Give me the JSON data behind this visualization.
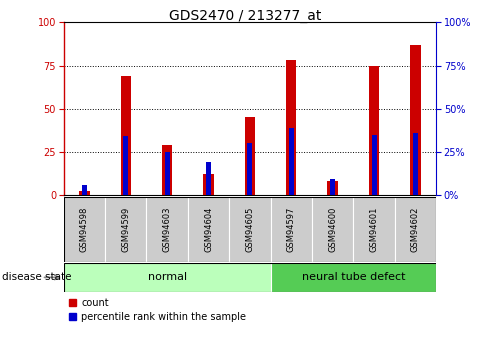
{
  "title": "GDS2470 / 213277_at",
  "samples": [
    "GSM94598",
    "GSM94599",
    "GSM94603",
    "GSM94604",
    "GSM94605",
    "GSM94597",
    "GSM94600",
    "GSM94601",
    "GSM94602"
  ],
  "count_values": [
    2,
    69,
    29,
    12,
    45,
    78,
    8,
    75,
    87
  ],
  "percentile_values": [
    6,
    34,
    25,
    19,
    30,
    39,
    9,
    35,
    36
  ],
  "groups": [
    {
      "label": "normal",
      "start": 0,
      "end": 5,
      "color": "#bbffbb"
    },
    {
      "label": "neural tube defect",
      "start": 5,
      "end": 9,
      "color": "#55cc55"
    }
  ],
  "ylim": [
    0,
    100
  ],
  "yticks": [
    0,
    25,
    50,
    75,
    100
  ],
  "bar_color": "#cc0000",
  "percentile_color": "#0000cc",
  "left_axis_color": "#cc0000",
  "right_axis_color": "#0000cc",
  "grid_color": "black",
  "bar_width": 0.25,
  "percentile_bar_width": 0.12,
  "plot_bg_color": "#ffffff",
  "sample_box_color": "#cccccc",
  "disease_state_label": "disease state",
  "legend_count_label": "count",
  "legend_percentile_label": "percentile rank within the sample",
  "title_fontsize": 10,
  "tick_fontsize": 7,
  "sample_fontsize": 6,
  "group_fontsize": 8,
  "legend_fontsize": 7
}
